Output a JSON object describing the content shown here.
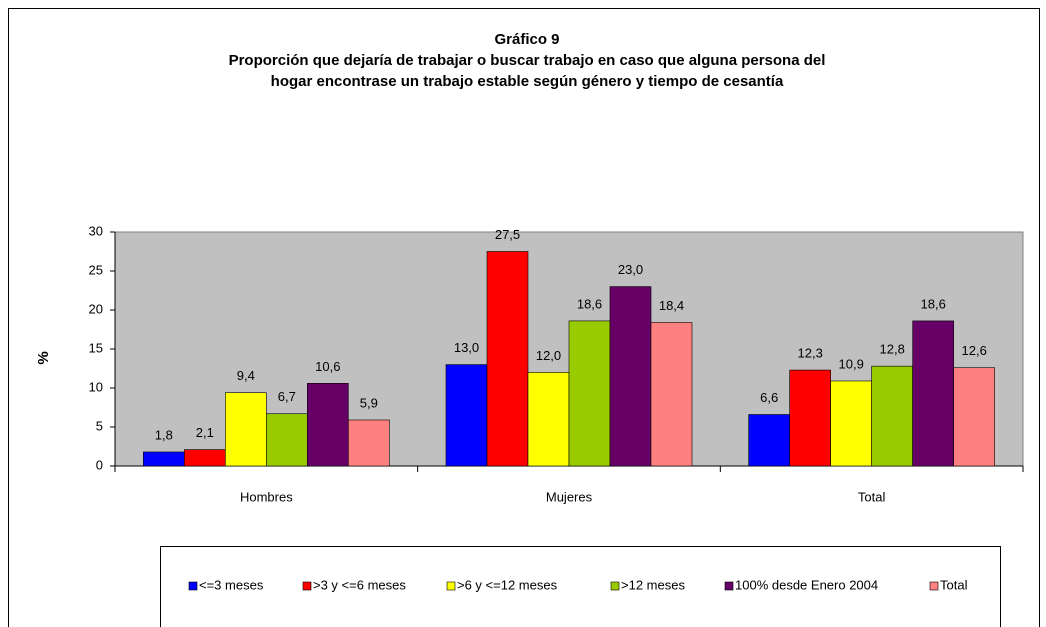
{
  "chart_data": {
    "type": "bar",
    "title": [
      "Gráfico 9",
      "Proporción que dejaría de trabajar o buscar trabajo en caso que alguna persona del",
      "hogar encontrase un trabajo estable según género y tiempo de cesantía"
    ],
    "ylabel": "%",
    "categories": [
      "Hombres",
      "Mujeres",
      "Total"
    ],
    "series": [
      {
        "name": "<=3 meses",
        "color": "#0000ff",
        "values": [
          1.8,
          13.0,
          6.6
        ],
        "value_labels": [
          "1,8",
          "13,0",
          "6,6"
        ]
      },
      {
        "name": ">3 y <=6 meses",
        "color": "#ff0000",
        "values": [
          2.1,
          27.5,
          12.3
        ],
        "value_labels": [
          "2,1",
          "27,5",
          "12,3"
        ]
      },
      {
        "name": ">6 y <=12 meses",
        "color": "#ffff00",
        "values": [
          9.4,
          12.0,
          10.9
        ],
        "value_labels": [
          "9,4",
          "12,0",
          "10,9"
        ]
      },
      {
        "name": ">12 meses",
        "color": "#99cc00",
        "values": [
          6.7,
          18.6,
          12.8
        ],
        "value_labels": [
          "6,7",
          "18,6",
          "12,8"
        ]
      },
      {
        "name": "100% desde Enero 2004",
        "color": "#660066",
        "values": [
          10.6,
          23.0,
          18.6
        ],
        "value_labels": [
          "10,6",
          "23,0",
          "18,6"
        ]
      },
      {
        "name": "Total",
        "color": "#ff8080",
        "values": [
          5.9,
          18.4,
          12.6
        ],
        "value_labels": [
          "5,9",
          "18,4",
          "12,6"
        ]
      }
    ],
    "ylim": [
      0,
      30
    ],
    "yticks": [
      0,
      5,
      10,
      15,
      20,
      25,
      30
    ],
    "grid": false,
    "legend": "bottom"
  }
}
